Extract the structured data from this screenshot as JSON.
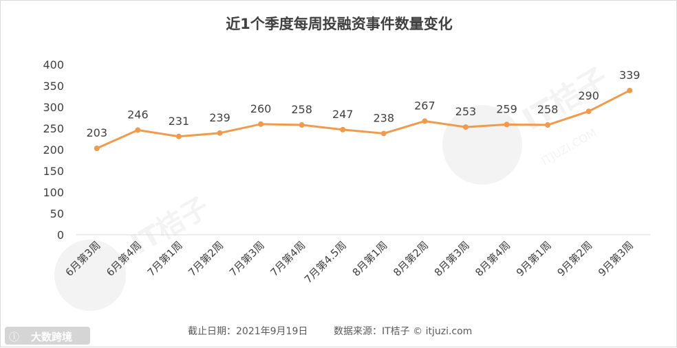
{
  "chart_data": {
    "type": "line",
    "title": "近1个季度每周投融资事件数量变化",
    "categories": [
      "6月第3周",
      "6月第4周",
      "7月第1周",
      "7月第2周",
      "7月第3周",
      "7月第4周",
      "7月第4.5周",
      "8月第1周",
      "8月第2周",
      "8月第3周",
      "8月第4周",
      "9月第1周",
      "9月第2周",
      "9月第3周"
    ],
    "series": [
      {
        "values": [
          203,
          246,
          231,
          239,
          260,
          258,
          247,
          238,
          267,
          253,
          259,
          258,
          290,
          339
        ]
      }
    ],
    "ylim": [
      0,
      400
    ],
    "yticks": [
      0,
      50,
      100,
      150,
      200,
      250,
      300,
      350,
      400
    ],
    "grid": false,
    "line_color": "#EF9A4D",
    "xlabel": "",
    "ylabel": ""
  },
  "footer": {
    "date_text": "截止日期：2021年9月19日",
    "source_text": "数据来源：IT桔子 © itjuzi.com"
  },
  "watermarks": {
    "center_brand": "IT桔子",
    "center_url": "ITJUZI.COM",
    "corner_brand": "大数跨境"
  }
}
